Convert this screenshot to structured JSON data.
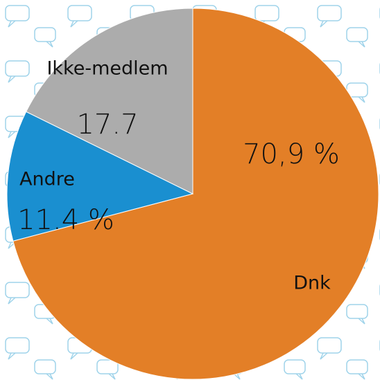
{
  "chart_data": {
    "type": "pie",
    "categories": [
      "Dnk",
      "Andre",
      "Ikke-medlem"
    ],
    "values": [
      70.9,
      11.4,
      17.7
    ],
    "value_labels": [
      "70,9 %",
      "11.4 %",
      "17.7"
    ],
    "colors": [
      "#e37f27",
      "#1a8fd0",
      "#acacac"
    ]
  }
}
